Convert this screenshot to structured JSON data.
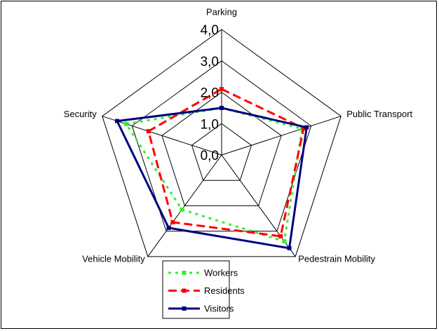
{
  "chart_data": {
    "type": "radar",
    "categories": [
      "Parking",
      "Public Transport",
      "Pedestrain Mobility",
      "Vehicle Mobility",
      "Security"
    ],
    "series": [
      {
        "name": "Workers",
        "color": "#33ee33",
        "dash": "dotted",
        "values": [
          1.5,
          2.7,
          3.4,
          2.15,
          3.2
        ]
      },
      {
        "name": "Residents",
        "color": "#ff0000",
        "dash": "dashed",
        "values": [
          2.1,
          2.75,
          3.2,
          2.65,
          2.45
        ]
      },
      {
        "name": "Visitors",
        "color": "#000080",
        "dash": "solid",
        "values": [
          1.5,
          2.85,
          3.67,
          2.87,
          3.5
        ]
      }
    ],
    "ylim": [
      0,
      4
    ],
    "yticks": [
      {
        "value": 0,
        "label": "0,0"
      },
      {
        "value": 1,
        "label": "1,0"
      },
      {
        "value": 2,
        "label": "2,0"
      },
      {
        "value": 3,
        "label": "3,0"
      },
      {
        "value": 4,
        "label": "4,0"
      }
    ],
    "grid": true,
    "legend": "bottom"
  }
}
